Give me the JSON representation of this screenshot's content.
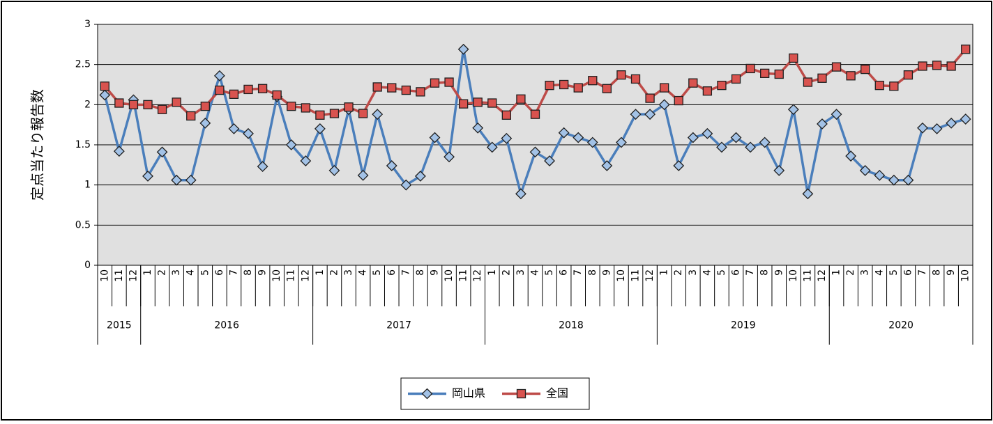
{
  "chart_data": {
    "type": "line",
    "y_label": "定点当たり報告数",
    "categories": [
      "10",
      "11",
      "12",
      "1",
      "2",
      "3",
      "4",
      "5",
      "6",
      "7",
      "8",
      "9",
      "10",
      "11",
      "12",
      "1",
      "2",
      "3",
      "4",
      "5",
      "6",
      "7",
      "8",
      "9",
      "10",
      "11",
      "12",
      "1",
      "2",
      "3",
      "4",
      "5",
      "6",
      "7",
      "8",
      "9",
      "10",
      "11",
      "12",
      "1",
      "2",
      "3",
      "4",
      "5",
      "6",
      "7",
      "8",
      "9",
      "10",
      "11",
      "12",
      "1",
      "2",
      "3",
      "4",
      "5",
      "6",
      "7",
      "8",
      "9",
      "10"
    ],
    "years": [
      "2015",
      "2016",
      "2017",
      "2018",
      "2019",
      "2020"
    ],
    "series": [
      {
        "name": "岡山県",
        "color": "#4a7ebb",
        "marker_color": "#a3c2e6",
        "marker": "diamond",
        "values": [
          2.12,
          1.42,
          2.06,
          1.11,
          1.41,
          1.06,
          1.06,
          1.77,
          2.36,
          1.7,
          1.64,
          1.23,
          2.1,
          1.5,
          1.3,
          1.7,
          1.18,
          1.94,
          1.12,
          1.88,
          1.24,
          1.0,
          1.11,
          1.59,
          1.35,
          2.69,
          1.71,
          1.47,
          1.58,
          0.89,
          1.41,
          1.3,
          1.65,
          1.59,
          1.53,
          1.24,
          1.53,
          1.88,
          1.88,
          2.0,
          1.24,
          1.59,
          1.64,
          1.47,
          1.59,
          1.47,
          1.53,
          1.18,
          1.94,
          0.89,
          1.76,
          1.88,
          1.36,
          1.18,
          1.12,
          1.06,
          1.06,
          1.71,
          1.7,
          1.77,
          1.82
        ]
      },
      {
        "name": "全国",
        "color": "#be4b48",
        "marker_color": "#d9534f",
        "marker": "square",
        "values": [
          2.23,
          2.02,
          2.0,
          2.0,
          1.94,
          2.03,
          1.86,
          1.98,
          2.18,
          2.13,
          2.19,
          2.2,
          2.12,
          1.98,
          1.96,
          1.87,
          1.89,
          1.97,
          1.89,
          2.22,
          2.21,
          2.18,
          2.16,
          2.27,
          2.28,
          2.01,
          2.03,
          2.02,
          1.87,
          2.07,
          1.88,
          2.24,
          2.25,
          2.21,
          2.3,
          2.2,
          2.37,
          2.32,
          2.08,
          2.21,
          2.05,
          2.27,
          2.17,
          2.24,
          2.32,
          2.45,
          2.39,
          2.38,
          2.58,
          2.28,
          2.33,
          2.47,
          2.36,
          2.44,
          2.24,
          2.23,
          2.37,
          2.48,
          2.49,
          2.48,
          2.69
        ]
      }
    ],
    "ylim": [
      0,
      3
    ],
    "yticks": [
      0,
      0.5,
      1,
      1.5,
      2,
      2.5,
      3
    ],
    "grid": true,
    "plot_background": "#e0e0e0",
    "legend": "bottom"
  }
}
